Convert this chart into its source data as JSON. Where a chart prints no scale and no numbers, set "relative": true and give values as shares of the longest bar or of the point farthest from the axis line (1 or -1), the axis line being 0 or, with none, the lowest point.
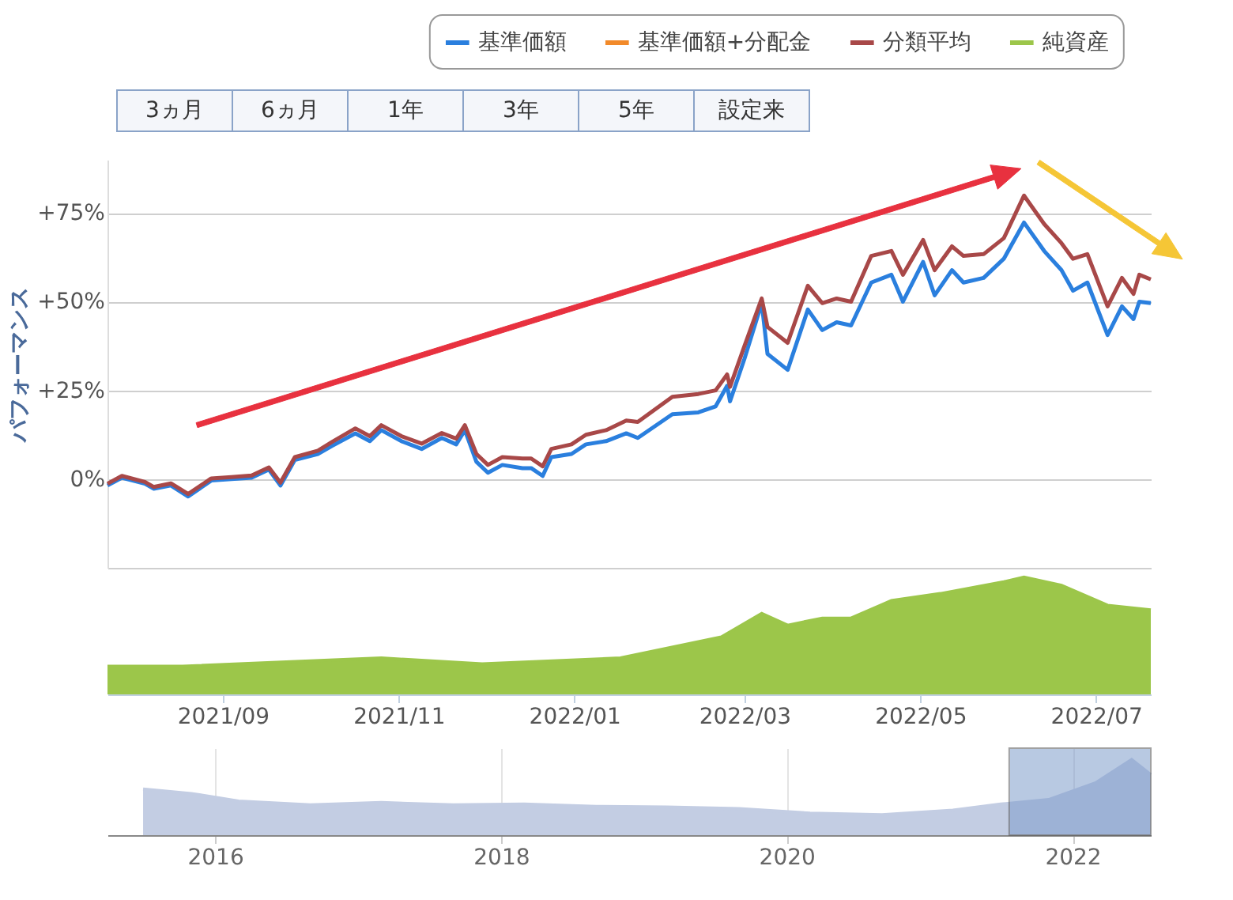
{
  "chart_data": [
    {
      "type": "line",
      "ylabel": "パフォーマンス",
      "legend": "top right",
      "grid": "y",
      "marker": "none",
      "line_style": "solid",
      "tick_labels": "y",
      "annotations": [
        "3ヵ月",
        "6ヵ月",
        "1年",
        "3年",
        "5年",
        "設定来"
      ],
      "x": [
        "2021-07-23",
        "2021-07-28",
        "2021-08-05",
        "2021-08-08",
        "2021-08-14",
        "2021-08-20",
        "2021-08-28",
        "2021-09-04",
        "2021-09-11",
        "2021-09-17",
        "2021-09-21",
        "2021-09-26",
        "2021-10-04",
        "2021-10-09",
        "2021-10-17",
        "2021-10-22",
        "2021-10-26",
        "2021-11-02",
        "2021-11-09",
        "2021-11-16",
        "2021-11-21",
        "2021-11-24",
        "2021-11-28",
        "2021-12-02",
        "2021-12-07",
        "2021-12-14",
        "2021-12-17",
        "2021-12-21",
        "2021-12-24",
        "2021-12-31",
        "2022-01-05",
        "2022-01-12",
        "2022-01-19",
        "2022-01-23",
        "2022-02-04",
        "2022-02-13",
        "2022-02-19",
        "2022-02-23",
        "2022-02-24",
        "2022-03-01",
        "2022-03-07",
        "2022-03-09",
        "2022-03-16",
        "2022-03-23",
        "2022-03-28",
        "2022-04-02",
        "2022-04-07",
        "2022-04-14",
        "2022-04-21",
        "2022-04-25",
        "2022-05-02",
        "2022-05-06",
        "2022-05-12",
        "2022-05-16",
        "2022-05-23",
        "2022-05-30",
        "2022-06-06",
        "2022-06-13",
        "2022-06-19",
        "2022-06-23",
        "2022-06-28",
        "2022-07-05",
        "2022-07-10",
        "2022-07-14",
        "2022-07-16",
        "2022-07-20"
      ],
      "xlim": [
        "2021-07-23",
        "2022-07-20"
      ],
      "ylim": [
        -25,
        90
      ],
      "yticks": [
        {
          "value": -25,
          "label": null
        },
        {
          "value": 0,
          "label": "0%"
        },
        {
          "value": 25,
          "label": "+25%"
        },
        {
          "value": 50,
          "label": "+50%"
        },
        {
          "value": 75,
          "label": "+75%"
        }
      ],
      "series": [
        {
          "name": "基準価額",
          "color": "#2a7fde",
          "values": [
            -1.8,
            0.4,
            -1.3,
            -2.7,
            -1.8,
            -4.9,
            -0.4,
            0,
            0.4,
            2.7,
            -1.8,
            5.4,
            7.1,
            9.4,
            12.9,
            10.7,
            13.8,
            10.7,
            8.5,
            11.6,
            9.8,
            13.8,
            4.9,
            1.8,
            4.0,
            3.1,
            3.1,
            0.9,
            6.2,
            7.1,
            9.8,
            10.7,
            12.9,
            11.6,
            18.3,
            18.8,
            20.5,
            26.3,
            21.9,
            33.9,
            49.6,
            35.3,
            30.8,
            47.8,
            42.0,
            44.2,
            43.3,
            55.4,
            57.6,
            50.0,
            61.2,
            51.8,
            58.9,
            55.4,
            56.7,
            62.1,
            72.3,
            64.3,
            58.9,
            53.1,
            55.4,
            40.6,
            48.7,
            45.1,
            50.0,
            49.6
          ]
        },
        {
          "name": "基準価額+分配金",
          "color": "#f28a2a",
          "values": [
            null,
            null,
            null,
            null,
            null,
            null,
            null,
            null,
            null,
            null,
            null,
            null,
            null,
            null,
            null,
            null,
            null,
            null,
            null,
            null,
            null,
            null,
            null,
            null,
            null,
            null,
            null,
            null,
            null,
            null,
            null,
            null,
            null,
            null,
            null,
            null,
            null,
            null,
            null,
            null,
            null,
            null,
            null,
            null,
            null,
            null,
            null,
            null,
            null,
            null,
            null,
            null,
            null,
            null,
            null,
            null,
            null,
            null,
            null,
            null,
            null,
            null,
            null,
            null,
            null,
            null
          ]
        },
        {
          "name": "分類平均",
          "color": "#a84848",
          "values": [
            -1.3,
            0.9,
            -0.8,
            -2.2,
            -1.2,
            -4.2,
            0.2,
            0.6,
            1.0,
            3.3,
            -1.0,
            6.2,
            8.0,
            10.5,
            14.3,
            12.1,
            15.2,
            12.1,
            10.0,
            13.0,
            11.4,
            15.2,
            7.1,
            4.0,
            6.2,
            5.8,
            5.8,
            3.6,
            8.5,
            9.8,
            12.5,
            13.8,
            16.5,
            16.1,
            23.2,
            24.0,
            25.0,
            29.5,
            26.0,
            37.5,
            50.9,
            42.9,
            38.4,
            54.5,
            49.6,
            50.9,
            50.0,
            62.9,
            64.3,
            57.6,
            67.4,
            58.9,
            65.6,
            62.9,
            63.4,
            67.9,
            79.9,
            71.9,
            66.5,
            62.1,
            63.4,
            48.7,
            56.7,
            52.2,
            57.6,
            56.3
          ]
        }
      ]
    },
    {
      "type": "area",
      "relative": true,
      "xlim": [
        "2021-07-23",
        "2022-07-20"
      ],
      "xticks": [
        {
          "value": "2021-09",
          "label": "2021/09"
        },
        {
          "value": "2021-11",
          "label": "2021/11"
        },
        {
          "value": "2022-01",
          "label": "2022/01"
        },
        {
          "value": "2022-03",
          "label": "2022/03"
        },
        {
          "value": "2022-05",
          "label": "2022/05"
        },
        {
          "value": "2022-07",
          "label": "2022/07"
        }
      ],
      "x": [
        "2021-07-23",
        "2021-08-18",
        "2021-10-26",
        "2021-11-30",
        "2022-01-17",
        "2022-02-21",
        "2022-03-07",
        "2022-03-16",
        "2022-03-28",
        "2022-04-07",
        "2022-04-21",
        "2022-05-08",
        "2022-05-30",
        "2022-06-06",
        "2022-06-19",
        "2022-07-05",
        "2022-07-20"
      ],
      "series": [
        {
          "name": "純資産",
          "color": "#9cc64a",
          "values": [
            0.24,
            0.24,
            0.31,
            0.26,
            0.31,
            0.49,
            0.69,
            0.59,
            0.65,
            0.65,
            0.8,
            0.86,
            0.96,
            1,
            0.93,
            0.76,
            0.72
          ]
        }
      ]
    },
    {
      "type": "area",
      "relative": true,
      "grid": "x",
      "x": [
        "2015-07",
        "2015-11",
        "2016-03",
        "2016-09",
        "2017-03",
        "2017-09",
        "2018-03",
        "2018-09",
        "2019-03",
        "2019-09",
        "2020-03",
        "2020-09",
        "2021-03",
        "2021-07",
        "2021-11",
        "2022-03",
        "2022-06",
        "2022-07-20"
      ],
      "xlim": [
        "2015-04",
        "2022-07-20"
      ],
      "xticks": [
        "2016",
        "2018",
        "2020",
        "2022"
      ],
      "bands": [
        {
          "axis": "x",
          "from": "2021-07-23",
          "to": "2022-07-20",
          "color": "#7f9dcc"
        }
      ],
      "series": [
        {
          "color": "#c3cde3",
          "values": [
            0.61,
            0.55,
            0.45,
            0.4,
            0.43,
            0.4,
            0.41,
            0.38,
            0.37,
            0.35,
            0.29,
            0.27,
            0.33,
            0.41,
            0.47,
            0.69,
            1,
            0.8
          ]
        }
      ]
    }
  ]
}
